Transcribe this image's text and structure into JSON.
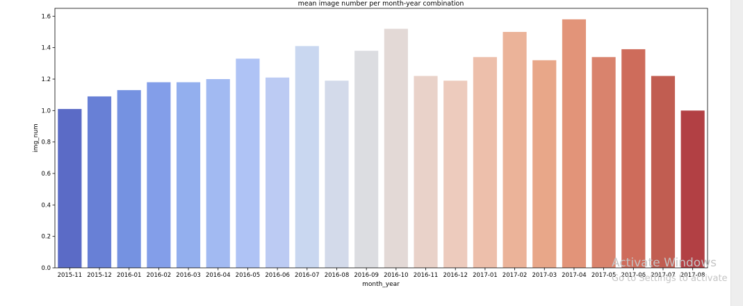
{
  "chart_data": {
    "type": "bar",
    "title": "mean image number per month-year combination",
    "xlabel": "month_year",
    "ylabel": "img_num",
    "ylim": [
      0,
      1.65
    ],
    "yticks": [
      "0.0",
      "0.2",
      "0.4",
      "0.6",
      "0.8",
      "1.0",
      "1.2",
      "1.4",
      "1.6"
    ],
    "grid": false,
    "categories": [
      "2015-11",
      "2015-12",
      "2016-01",
      "2016-02",
      "2016-03",
      "2016-04",
      "2016-05",
      "2016-06",
      "2016-07",
      "2016-08",
      "2016-09",
      "2016-10",
      "2016-11",
      "2016-12",
      "2017-01",
      "2017-02",
      "2017-03",
      "2017-04",
      "2017-05",
      "2017-06",
      "2017-07",
      "2017-08"
    ],
    "values": [
      1.01,
      1.09,
      1.13,
      1.18,
      1.18,
      1.2,
      1.33,
      1.21,
      1.41,
      1.19,
      1.38,
      1.52,
      1.22,
      1.19,
      1.34,
      1.5,
      1.32,
      1.58,
      1.34,
      1.39,
      1.22,
      1.0
    ],
    "colors": [
      "#5b6bc6",
      "#6880d6",
      "#7592e1",
      "#839ee9",
      "#93afee",
      "#a2baf2",
      "#afc3f5",
      "#bccbf3",
      "#c9d7f0",
      "#d3daea",
      "#dcdde1",
      "#e3d9d6",
      "#e9d2c9",
      "#edcbbd",
      "#edbfab",
      "#ebb399",
      "#e8a789",
      "#e29479",
      "#d9836d",
      "#ce6c5b",
      "#c15d51",
      "#b24044"
    ]
  },
  "watermark": {
    "line1": "Activate Windows",
    "line2": "Go to Settings to activate Wi"
  }
}
